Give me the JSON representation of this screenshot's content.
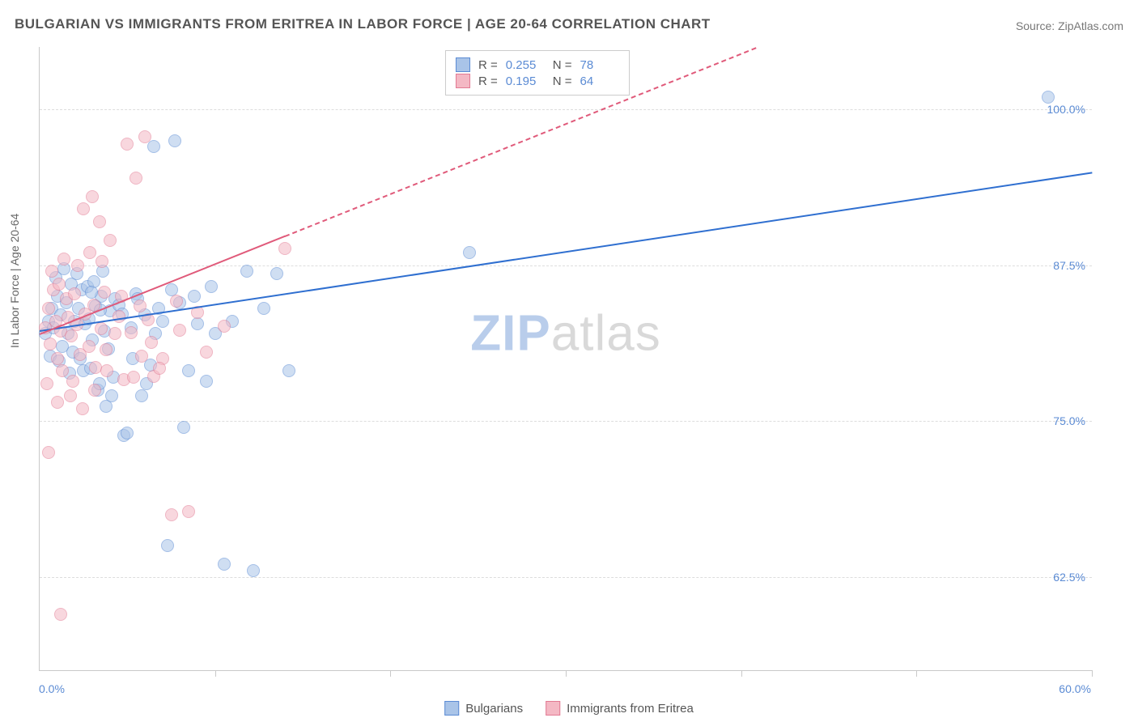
{
  "title": "BULGARIAN VS IMMIGRANTS FROM ERITREA IN LABOR FORCE | AGE 20-64 CORRELATION CHART",
  "source": "Source: ZipAtlas.com",
  "ylabel": "In Labor Force | Age 20-64",
  "watermark": {
    "part1": "ZIP",
    "part2": "atlas"
  },
  "chart": {
    "type": "scatter-with-trend",
    "background_color": "#ffffff",
    "grid_color": "#dddddd",
    "axis_color": "#c9c9c9",
    "label_color": "#5b8bd4",
    "xlim": [
      0,
      60
    ],
    "ylim": [
      55,
      105
    ],
    "xticks_minor": [
      10,
      20,
      30,
      40,
      50,
      60
    ],
    "xtick_labels": {
      "min": "0.0%",
      "max": "60.0%"
    },
    "yticks": [
      62.5,
      75.0,
      87.5,
      100.0
    ],
    "ytick_labels": [
      "62.5%",
      "75.0%",
      "87.5%",
      "100.0%"
    ],
    "point_radius": 7,
    "point_opacity": 0.55,
    "series": [
      {
        "name": "Bulgarians",
        "fill": "#a9c4e8",
        "stroke": "#5b8bd4",
        "trend_color": "#2f6fd0",
        "trend_dash": "solid",
        "R": "0.255",
        "N": "78",
        "trend": {
          "x1": 0,
          "y1": 82.3,
          "x2": 60,
          "y2": 95.0
        },
        "points": [
          [
            0.3,
            82
          ],
          [
            0.5,
            83
          ],
          [
            0.7,
            84
          ],
          [
            0.8,
            82.5
          ],
          [
            1.0,
            85
          ],
          [
            1.2,
            83.5
          ],
          [
            1.3,
            81
          ],
          [
            1.5,
            84.5
          ],
          [
            1.6,
            82
          ],
          [
            1.8,
            86
          ],
          [
            1.9,
            80.5
          ],
          [
            2.0,
            83
          ],
          [
            2.2,
            84
          ],
          [
            2.4,
            85.5
          ],
          [
            2.5,
            79
          ],
          [
            2.6,
            82.8
          ],
          [
            2.8,
            83.2
          ],
          [
            3.0,
            81.5
          ],
          [
            3.2,
            84.2
          ],
          [
            3.3,
            77.5
          ],
          [
            3.5,
            85
          ],
          [
            3.7,
            82.2
          ],
          [
            3.8,
            76.2
          ],
          [
            4.0,
            83.8
          ],
          [
            4.2,
            78.5
          ],
          [
            4.3,
            84.8
          ],
          [
            4.8,
            73.8
          ],
          [
            5.0,
            74
          ],
          [
            5.2,
            82.5
          ],
          [
            5.5,
            85.2
          ],
          [
            5.8,
            77
          ],
          [
            6.0,
            83.5
          ],
          [
            6.3,
            79.5
          ],
          [
            6.5,
            97
          ],
          [
            6.8,
            84
          ],
          [
            7.0,
            83
          ],
          [
            7.3,
            65
          ],
          [
            7.7,
            97.5
          ],
          [
            8.0,
            84.5
          ],
          [
            8.2,
            74.5
          ],
          [
            8.8,
            85
          ],
          [
            9.5,
            78.2
          ],
          [
            10.0,
            82
          ],
          [
            10.5,
            63.5
          ],
          [
            11.8,
            87
          ],
          [
            12.2,
            63
          ],
          [
            13.5,
            86.8
          ],
          [
            14.2,
            79
          ],
          [
            24.5,
            88.5
          ],
          [
            57.5,
            101
          ],
          [
            0.6,
            80.2
          ],
          [
            0.9,
            86.5
          ],
          [
            1.1,
            79.8
          ],
          [
            1.4,
            87.2
          ],
          [
            1.7,
            78.8
          ],
          [
            2.1,
            86.8
          ],
          [
            2.3,
            80
          ],
          [
            2.7,
            85.8
          ],
          [
            2.9,
            79.2
          ],
          [
            3.1,
            86.2
          ],
          [
            3.4,
            78
          ],
          [
            3.6,
            87
          ],
          [
            3.9,
            80.8
          ],
          [
            4.1,
            77
          ],
          [
            4.5,
            84.3
          ],
          [
            4.7,
            83.6
          ],
          [
            5.3,
            80
          ],
          [
            5.6,
            84.8
          ],
          [
            6.1,
            78
          ],
          [
            6.6,
            82
          ],
          [
            7.5,
            85.5
          ],
          [
            8.5,
            79
          ],
          [
            9.0,
            82.8
          ],
          [
            9.8,
            85.8
          ],
          [
            11.0,
            83
          ],
          [
            12.8,
            84
          ],
          [
            2.95,
            85.3
          ],
          [
            3.45,
            83.9
          ]
        ]
      },
      {
        "name": "Immigrants from Eritrea",
        "fill": "#f4b8c4",
        "stroke": "#e27a93",
        "trend_color": "#e05a7a",
        "trend_dash": "dashed",
        "R": "0.195",
        "N": "64",
        "trend": {
          "x1": 0,
          "y1": 82.0,
          "x2": 32,
          "y2": 100.0
        },
        "points": [
          [
            0.3,
            82.5
          ],
          [
            0.5,
            84
          ],
          [
            0.6,
            81.2
          ],
          [
            0.8,
            85.5
          ],
          [
            0.9,
            83
          ],
          [
            1.0,
            80
          ],
          [
            1.1,
            86
          ],
          [
            1.2,
            82.2
          ],
          [
            1.3,
            79
          ],
          [
            1.5,
            84.8
          ],
          [
            1.6,
            83.3
          ],
          [
            1.8,
            81.8
          ],
          [
            1.9,
            78.2
          ],
          [
            2.0,
            85.2
          ],
          [
            2.1,
            82.7
          ],
          [
            2.3,
            80.3
          ],
          [
            2.5,
            92
          ],
          [
            2.6,
            83.6
          ],
          [
            2.8,
            81
          ],
          [
            3.0,
            93
          ],
          [
            3.1,
            84.3
          ],
          [
            3.2,
            79.3
          ],
          [
            3.4,
            91
          ],
          [
            3.5,
            82.4
          ],
          [
            3.7,
            85.3
          ],
          [
            3.8,
            80.7
          ],
          [
            4.0,
            89.5
          ],
          [
            4.5,
            83.4
          ],
          [
            4.8,
            78.3
          ],
          [
            5.0,
            97.2
          ],
          [
            5.2,
            82.1
          ],
          [
            5.5,
            94.5
          ],
          [
            5.8,
            80.2
          ],
          [
            6.0,
            97.8
          ],
          [
            6.2,
            83.1
          ],
          [
            6.5,
            78.6
          ],
          [
            7.0,
            80
          ],
          [
            7.5,
            67.5
          ],
          [
            8.0,
            82.3
          ],
          [
            8.5,
            67.7
          ],
          [
            9.0,
            83.7
          ],
          [
            10.5,
            82.6
          ],
          [
            14.0,
            88.8
          ],
          [
            0.5,
            72.5
          ],
          [
            1.2,
            59.5
          ],
          [
            0.4,
            78
          ],
          [
            0.7,
            87
          ],
          [
            1.0,
            76.5
          ],
          [
            1.4,
            88
          ],
          [
            1.75,
            77
          ],
          [
            2.15,
            87.5
          ],
          [
            2.45,
            76
          ],
          [
            2.85,
            88.5
          ],
          [
            3.15,
            77.5
          ],
          [
            3.55,
            87.8
          ],
          [
            3.85,
            79
          ],
          [
            4.3,
            82
          ],
          [
            4.65,
            85
          ],
          [
            5.35,
            78.5
          ],
          [
            5.7,
            84.2
          ],
          [
            6.35,
            81.3
          ],
          [
            6.85,
            79.2
          ],
          [
            7.8,
            84.6
          ],
          [
            9.5,
            80.5
          ]
        ]
      }
    ]
  },
  "legend": [
    "Bulgarians",
    "Immigrants from Eritrea"
  ]
}
